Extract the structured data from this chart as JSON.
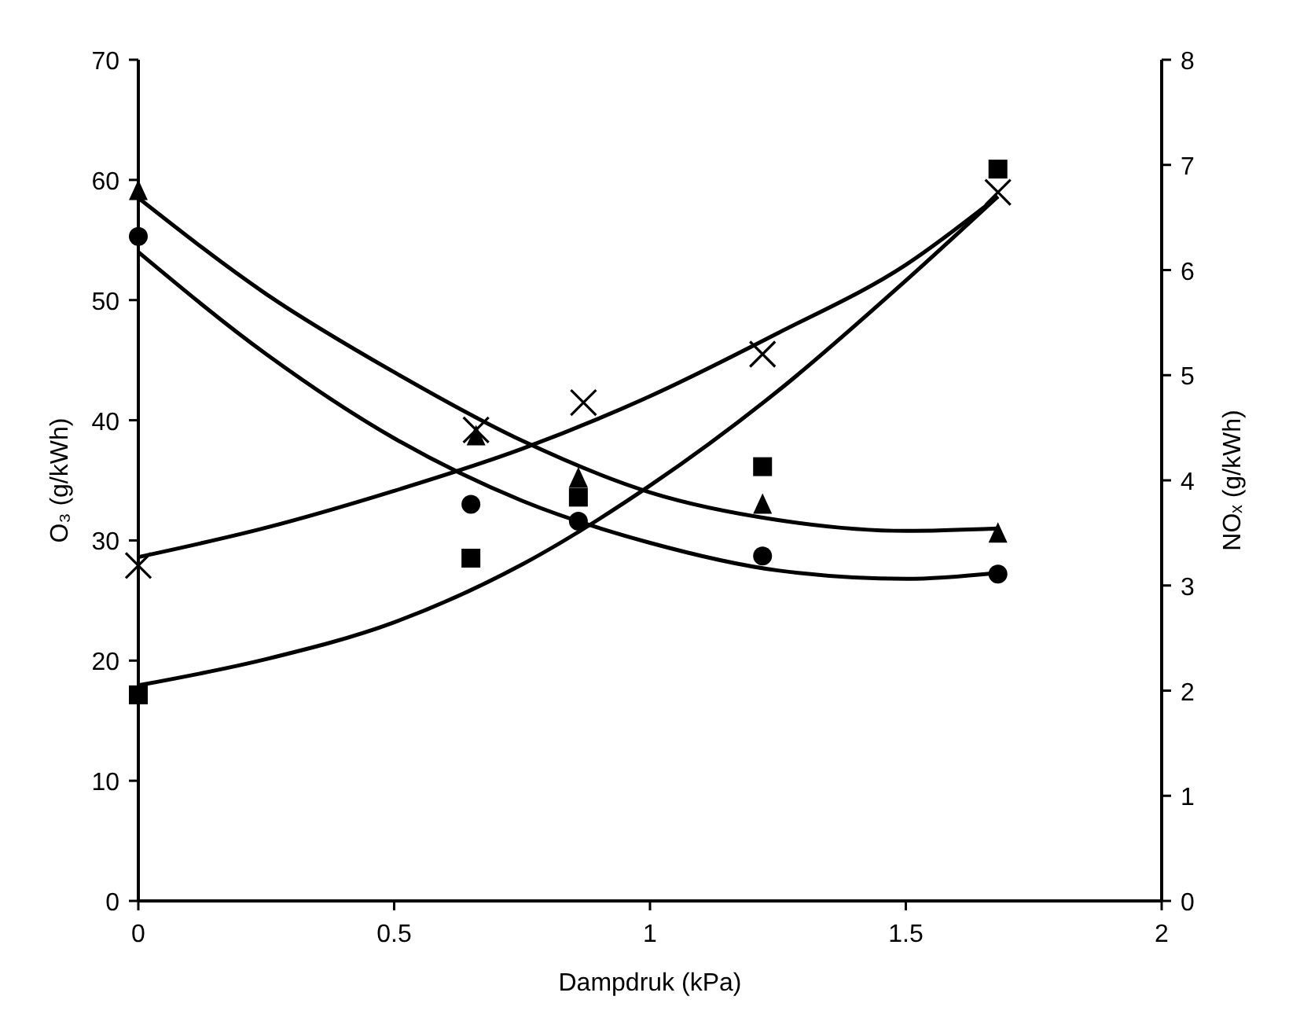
{
  "chart_data": {
    "type": "scatter",
    "xlabel": "Dampdruk (kPa)",
    "ylabel": "O₃  (g/kWh)",
    "y2label": "NOₓ (g/kWh)",
    "xlim": [
      0,
      2
    ],
    "xticks": [
      0,
      0.5,
      1,
      1.5,
      2
    ],
    "ylim": [
      0,
      70
    ],
    "yticks": [
      0,
      10,
      20,
      30,
      40,
      50,
      60,
      70
    ],
    "y2lim": [
      0,
      8
    ],
    "y2ticks": [
      0,
      1,
      2,
      3,
      4,
      5,
      6,
      7,
      8
    ],
    "series": [
      {
        "marker": "circle",
        "color": "#000000",
        "x": [
          0,
          0.65,
          0.86,
          1.22,
          1.68
        ],
        "values": [
          55.3,
          33.0,
          31.6,
          28.7,
          27.2
        ]
      },
      {
        "marker": "triangle",
        "color": "#000000",
        "x": [
          0,
          0.66,
          0.86,
          1.22,
          1.68
        ],
        "values": [
          59.1,
          38.7,
          35.2,
          33.0,
          30.6
        ]
      },
      {
        "marker": "square",
        "color": "#000000",
        "axis": "y2",
        "x": [
          0,
          0.65,
          0.86,
          1.22,
          1.68
        ],
        "values": [
          1.96,
          3.26,
          3.84,
          4.13,
          6.96
        ]
      },
      {
        "marker": "cross",
        "color": "#000000",
        "axis": "y2",
        "x": [
          0,
          0.66,
          0.87,
          1.22,
          1.68
        ],
        "values": [
          3.19,
          4.48,
          4.74,
          5.2,
          6.74
        ]
      },
      {
        "type": "line",
        "marker": "none",
        "line_style": "solid",
        "color": "#000000",
        "x": [
          0,
          0.25,
          0.5,
          0.75,
          1,
          1.25,
          1.5,
          1.68
        ],
        "values": [
          54,
          45.5,
          38.5,
          33.3,
          29.8,
          27.5,
          26.8,
          27.3
        ]
      },
      {
        "type": "line",
        "marker": "none",
        "line_style": "solid",
        "color": "#000000",
        "x": [
          0,
          0.25,
          0.5,
          0.75,
          1,
          1.25,
          1.5,
          1.68
        ],
        "values": [
          58.5,
          50.5,
          44,
          38.3,
          34,
          31.7,
          30.8,
          31
        ]
      },
      {
        "type": "line",
        "marker": "none",
        "line_style": "solid",
        "color": "#000000",
        "axis": "y2",
        "x": [
          0,
          0.25,
          0.5,
          0.75,
          1,
          1.25,
          1.5,
          1.68
        ],
        "values": [
          2.05,
          2.3,
          2.65,
          3.2,
          3.95,
          4.85,
          5.9,
          6.7
        ]
      },
      {
        "type": "line",
        "marker": "none",
        "line_style": "solid",
        "color": "#000000",
        "axis": "y2",
        "x": [
          0,
          0.25,
          0.5,
          0.75,
          1,
          1.25,
          1.5,
          1.68
        ],
        "values": [
          3.27,
          3.55,
          3.9,
          4.3,
          4.8,
          5.4,
          6.05,
          6.7
        ]
      }
    ]
  }
}
